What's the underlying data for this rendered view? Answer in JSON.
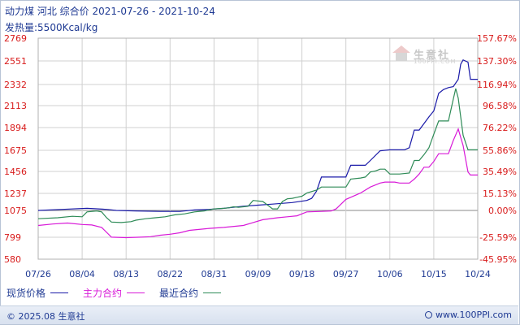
{
  "header": {
    "title": "动力煤 河北 综合价 2021-07-26 - 2021-10-24",
    "subtitle": "发热量:5500Kcal/kg"
  },
  "legend": {
    "items": [
      {
        "label": "现货价格",
        "color": "#1a1aa8"
      },
      {
        "label": "主力合约",
        "color": "#d81ad8"
      },
      {
        "label": "最近合约",
        "color": "#2e8b57"
      }
    ]
  },
  "watermark": {
    "text": "生意社",
    "sub": "100PPI.COM"
  },
  "footer": {
    "copyright": "© 2025.08 生意社",
    "website": "www.100PPI.com"
  },
  "chart_data": {
    "type": "line",
    "y_left_ticks": [
      "2769",
      "2551",
      "2332",
      "2113",
      "1894",
      "1675",
      "1456",
      "1237",
      "1075",
      "799",
      "580"
    ],
    "y_left_values": [
      2769,
      2551,
      2332,
      2113,
      1894,
      1675,
      1456,
      1237,
      1075,
      799,
      580
    ],
    "y_right_ticks": [
      "157.67%",
      "137.30%",
      "116.94%",
      "96.58%",
      "76.22%",
      "55.86%",
      "35.49%",
      "15.13%",
      "0.00%",
      "-25.59%",
      "-45.95%"
    ],
    "x_ticks": [
      "07/26",
      "08/04",
      "08/13",
      "08/22",
      "08/31",
      "09/09",
      "09/18",
      "09/27",
      "10/06",
      "10/15",
      "10/24"
    ],
    "x_range": [
      0,
      90
    ],
    "ylim": [
      580,
      2769
    ],
    "grid": true,
    "series": [
      {
        "name": "现货价格",
        "color": "#1a1aa8",
        "points": [
          [
            0,
            1075
          ],
          [
            5,
            1085
          ],
          [
            10,
            1095
          ],
          [
            14,
            1085
          ],
          [
            16,
            1075
          ],
          [
            20,
            1070
          ],
          [
            25,
            1065
          ],
          [
            29,
            1065
          ],
          [
            32,
            1080
          ],
          [
            35,
            1085
          ],
          [
            38,
            1095
          ],
          [
            42,
            1115
          ],
          [
            45,
            1125
          ],
          [
            48,
            1135
          ],
          [
            52,
            1150
          ],
          [
            55,
            1170
          ],
          [
            56,
            1190
          ],
          [
            57,
            1260
          ],
          [
            58,
            1400
          ],
          [
            62,
            1400
          ],
          [
            63,
            1400
          ],
          [
            64,
            1520
          ],
          [
            67,
            1520
          ],
          [
            68,
            1570
          ],
          [
            70,
            1670
          ],
          [
            72,
            1680
          ],
          [
            74,
            1680
          ],
          [
            75,
            1680
          ],
          [
            76,
            1700
          ],
          [
            77,
            1870
          ],
          [
            78,
            1870
          ],
          [
            80,
            2000
          ],
          [
            81,
            2060
          ],
          [
            82,
            2240
          ],
          [
            83,
            2280
          ],
          [
            84,
            2300
          ],
          [
            85,
            2310
          ],
          [
            86,
            2380
          ],
          [
            86.5,
            2520
          ],
          [
            87,
            2560
          ],
          [
            88,
            2540
          ],
          [
            88.5,
            2380
          ],
          [
            90,
            2380
          ]
        ]
      },
      {
        "name": "主力合约",
        "color": "#d81ad8",
        "points": [
          [
            0,
            920
          ],
          [
            3,
            935
          ],
          [
            6,
            945
          ],
          [
            9,
            930
          ],
          [
            11,
            925
          ],
          [
            13,
            900
          ],
          [
            15,
            800
          ],
          [
            18,
            795
          ],
          [
            21,
            800
          ],
          [
            23,
            805
          ],
          [
            25,
            820
          ],
          [
            27,
            830
          ],
          [
            29,
            845
          ],
          [
            31,
            870
          ],
          [
            35,
            890
          ],
          [
            38,
            900
          ],
          [
            42,
            920
          ],
          [
            44,
            950
          ],
          [
            46,
            980
          ],
          [
            49,
            1000
          ],
          [
            51,
            1010
          ],
          [
            53,
            1020
          ],
          [
            54,
            1040
          ],
          [
            55,
            1060
          ],
          [
            58,
            1065
          ],
          [
            60,
            1070
          ],
          [
            61,
            1090
          ],
          [
            63,
            1180
          ],
          [
            64,
            1200
          ],
          [
            66,
            1240
          ],
          [
            68,
            1300
          ],
          [
            70,
            1340
          ],
          [
            71,
            1350
          ],
          [
            73,
            1350
          ],
          [
            74,
            1340
          ],
          [
            75,
            1340
          ],
          [
            76,
            1340
          ],
          [
            77,
            1380
          ],
          [
            78,
            1430
          ],
          [
            79,
            1500
          ],
          [
            80,
            1500
          ],
          [
            81,
            1560
          ],
          [
            82,
            1640
          ],
          [
            84,
            1640
          ],
          [
            85,
            1770
          ],
          [
            86,
            1880
          ],
          [
            87,
            1720
          ],
          [
            88,
            1450
          ],
          [
            88.5,
            1420
          ],
          [
            90,
            1420
          ]
        ]
      },
      {
        "name": "最近合约",
        "color": "#2e8b57",
        "points": [
          [
            0,
            990
          ],
          [
            4,
            1000
          ],
          [
            7,
            1015
          ],
          [
            9,
            1010
          ],
          [
            10,
            1060
          ],
          [
            12,
            1070
          ],
          [
            13,
            1060
          ],
          [
            14,
            1000
          ],
          [
            15,
            955
          ],
          [
            17,
            950
          ],
          [
            19,
            960
          ],
          [
            20,
            975
          ],
          [
            22,
            990
          ],
          [
            24,
            1000
          ],
          [
            26,
            1010
          ],
          [
            28,
            1030
          ],
          [
            30,
            1040
          ],
          [
            32,
            1060
          ],
          [
            34,
            1070
          ],
          [
            36,
            1090
          ],
          [
            38,
            1095
          ],
          [
            39,
            1100
          ],
          [
            40,
            1110
          ],
          [
            41,
            1105
          ],
          [
            42,
            1110
          ],
          [
            43,
            1115
          ],
          [
            44,
            1170
          ],
          [
            46,
            1160
          ],
          [
            48,
            1090
          ],
          [
            49,
            1090
          ],
          [
            50,
            1160
          ],
          [
            51,
            1185
          ],
          [
            52,
            1190
          ],
          [
            53,
            1200
          ],
          [
            54,
            1210
          ],
          [
            55,
            1240
          ],
          [
            57,
            1270
          ],
          [
            58,
            1300
          ],
          [
            62,
            1300
          ],
          [
            63,
            1300
          ],
          [
            64,
            1380
          ],
          [
            66,
            1390
          ],
          [
            67,
            1400
          ],
          [
            68,
            1450
          ],
          [
            69,
            1460
          ],
          [
            70,
            1480
          ],
          [
            71,
            1480
          ],
          [
            72,
            1430
          ],
          [
            74,
            1430
          ],
          [
            76,
            1440
          ],
          [
            77,
            1570
          ],
          [
            78,
            1570
          ],
          [
            79,
            1630
          ],
          [
            80,
            1700
          ],
          [
            81,
            1830
          ],
          [
            82,
            1960
          ],
          [
            84,
            1960
          ],
          [
            85,
            2180
          ],
          [
            85.5,
            2290
          ],
          [
            86,
            2190
          ],
          [
            87,
            1820
          ],
          [
            88,
            1680
          ],
          [
            90,
            1680
          ]
        ]
      }
    ]
  }
}
